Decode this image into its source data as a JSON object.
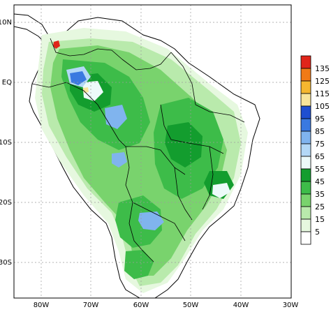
{
  "map": {
    "lat_labels": [
      "10N",
      "EQ",
      "10S",
      "20S",
      "30S"
    ],
    "lon_labels": [
      "80W",
      "70W",
      "60W",
      "50W",
      "40W",
      "30W"
    ],
    "colors": {
      "ocean": "#ffffff",
      "coast": "#000000",
      "grid": "#9a9a9a"
    }
  },
  "colorbar": {
    "labels": [
      "135",
      "125",
      "115",
      "105",
      "95",
      "85",
      "75",
      "65",
      "55",
      "45",
      "35",
      "25",
      "15",
      "5"
    ],
    "colors": [
      "#e0251a",
      "#f07a16",
      "#f5b72f",
      "#f9e59a",
      "#1f4fd0",
      "#3a79e0",
      "#80b4ee",
      "#b3d8f6",
      "#ecfaf9",
      "#139d2e",
      "#3dbc49",
      "#79d36d",
      "#b9eaac",
      "#e6f8df",
      "#ffffff"
    ]
  }
}
